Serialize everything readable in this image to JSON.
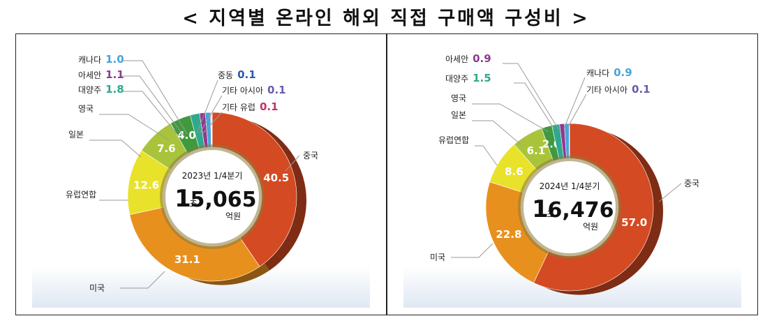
{
  "title": "< 지역별 온라인 해외 직접 구매액 구성비 >",
  "colors": {
    "중국": "#d44a22",
    "미국": "#e8901e",
    "유럽연합": "#e9e22a",
    "일본": "#a9c43a",
    "영국": "#3f9a3e",
    "대양주": "#2fa88e",
    "아세안": "#8e3a8f",
    "캐나다": "#4aa3d9",
    "중동": "#2b5aa8",
    "기타 아시아": "#6b5aa8",
    "기타 유럽": "#c2336b"
  },
  "chart_data": [
    {
      "type": "pie",
      "center_label": {
        "period": "2023년 1/4분기",
        "big": "1",
        "unit_jo": "조",
        "amount": "5,065",
        "unit_eok": "억원"
      },
      "slices": [
        {
          "label": "중국",
          "value": 40.5,
          "value_text": "40.5"
        },
        {
          "label": "미국",
          "value": 31.1,
          "value_text": "31.1"
        },
        {
          "label": "유럽연합",
          "value": 12.6,
          "value_text": "12.6"
        },
        {
          "label": "일본",
          "value": 7.6,
          "value_text": "7.6"
        },
        {
          "label": "영국",
          "value": 4.0,
          "value_text": "4.0"
        },
        {
          "label": "대양주",
          "value": 1.8,
          "value_text": "1.8"
        },
        {
          "label": "아세안",
          "value": 1.1,
          "value_text": "1.1"
        },
        {
          "label": "캐나다",
          "value": 1.0,
          "value_text": "1.0"
        },
        {
          "label": "중동",
          "value": 0.1,
          "value_text": "0.1"
        },
        {
          "label": "기타 아시아",
          "value": 0.1,
          "value_text": "0.1"
        },
        {
          "label": "기타 유럽",
          "value": 0.1,
          "value_text": "0.1"
        }
      ]
    },
    {
      "type": "pie",
      "center_label": {
        "period": "2024년 1/4분기",
        "big": "1",
        "unit_jo": "조",
        "amount": "6,476",
        "unit_eok": "억원"
      },
      "slices": [
        {
          "label": "중국",
          "value": 57.0,
          "value_text": "57.0"
        },
        {
          "label": "미국",
          "value": 22.8,
          "value_text": "22.8"
        },
        {
          "label": "유럽연합",
          "value": 8.6,
          "value_text": "8.6"
        },
        {
          "label": "일본",
          "value": 6.1,
          "value_text": "6.1"
        },
        {
          "label": "영국",
          "value": 2.0,
          "value_text": "2.0"
        },
        {
          "label": "대양주",
          "value": 1.5,
          "value_text": "1.5"
        },
        {
          "label": "아세안",
          "value": 0.9,
          "value_text": "0.9"
        },
        {
          "label": "캐나다",
          "value": 0.9,
          "value_text": "0.9"
        },
        {
          "label": "기타 아시아",
          "value": 0.1,
          "value_text": "0.1"
        }
      ]
    }
  ]
}
